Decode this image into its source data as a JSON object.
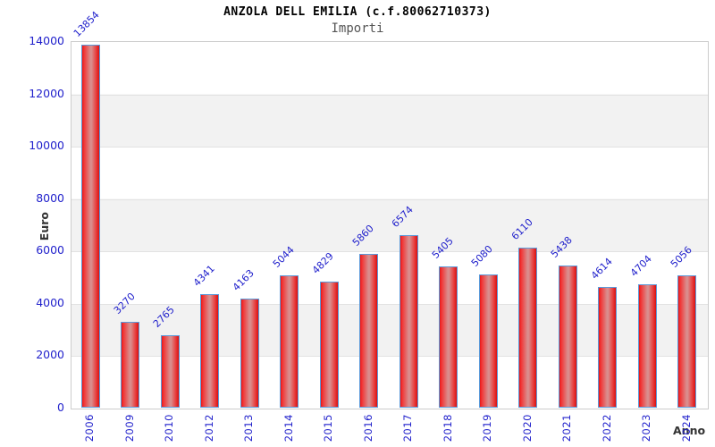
{
  "chart_data": {
    "type": "bar",
    "title": "ANZOLA DELL EMILIA (c.f.80062710373)",
    "subtitle": "Importi",
    "xlabel": "Anno",
    "ylabel": "Euro",
    "categories": [
      "2006",
      "2009",
      "2010",
      "2012",
      "2013",
      "2014",
      "2015",
      "2016",
      "2017",
      "2018",
      "2019",
      "2020",
      "2021",
      "2022",
      "2023",
      "2024"
    ],
    "values": [
      13854,
      3270,
      2765,
      4341,
      4163,
      5044,
      4829,
      5860,
      6574,
      5405,
      5080,
      6110,
      5438,
      4614,
      4704,
      5056
    ],
    "ylim": [
      0,
      14000
    ],
    "yticks": [
      0,
      2000,
      4000,
      6000,
      8000,
      10000,
      12000,
      14000
    ],
    "grid": "horizontal-bands",
    "legend_position": "none",
    "colors": {
      "bar_fill": "#e61616",
      "bar_highlight": "#d98d8d",
      "bar_border": "#5b9ada",
      "value_label": "#2222cc",
      "tick_label": "#2222cc",
      "band": "#f2f2f2",
      "gridline": "#e2e2e2",
      "plot_border": "#cccccc",
      "title": "#000000",
      "subtitle": "#555555",
      "axis_title": "#333333"
    }
  }
}
